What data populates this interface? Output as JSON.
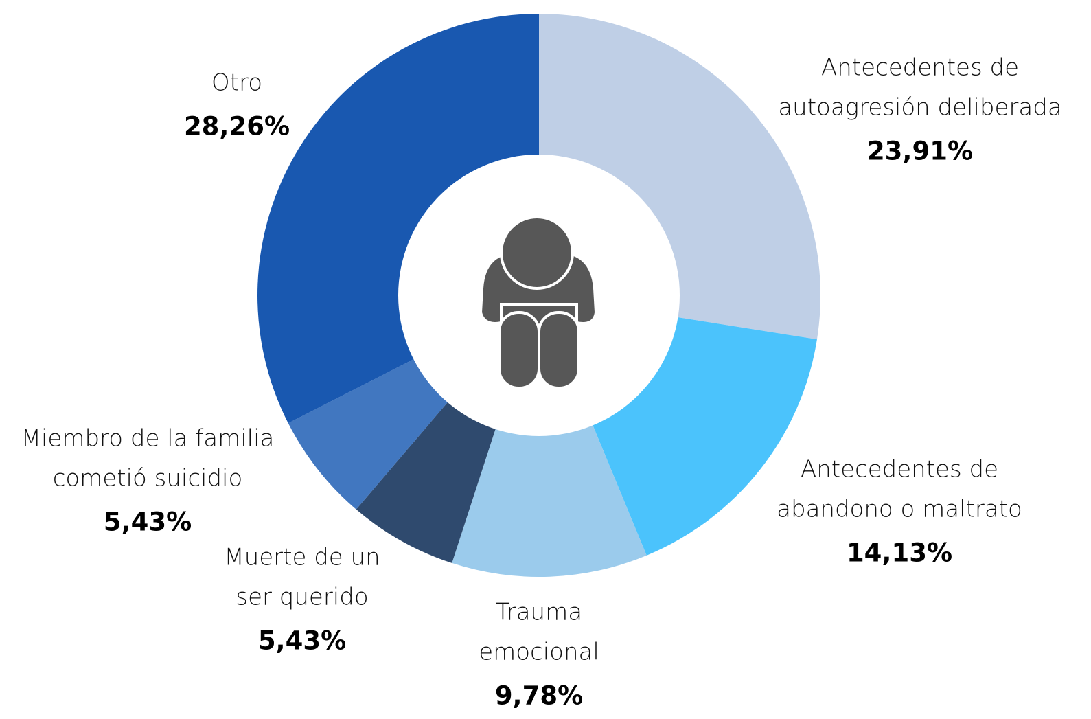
{
  "chart_data": {
    "type": "donut",
    "categories": [
      [
        "Antecedentes de",
        "autoagresión deliberada"
      ],
      [
        "Antecedentes de",
        "abandono o maltrato"
      ],
      [
        "Trauma",
        "emocional"
      ],
      [
        "Muerte de un",
        "ser querido"
      ],
      [
        "Miembro de la familia",
        "cometió suicidio"
      ],
      [
        "Otro"
      ]
    ],
    "values": [
      23.91,
      14.13,
      9.78,
      5.43,
      5.43,
      28.26
    ],
    "value_labels": [
      "23,91%",
      "14,13%",
      "9,78%",
      "5,43%",
      "5,43%",
      "28,26%"
    ],
    "colors": [
      "#bfcfe6",
      "#4bc3fc",
      "#9bcbec",
      "#2f4a6e",
      "#4177c0",
      "#1958b0"
    ]
  }
}
